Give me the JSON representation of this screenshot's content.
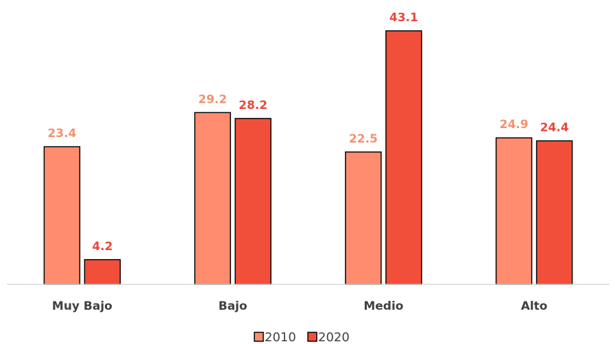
{
  "chart_data": {
    "type": "bar",
    "categories": [
      "Muy Bajo",
      "Bajo",
      "Medio",
      "Alto"
    ],
    "series": [
      {
        "name": "2010",
        "values": [
          23.4,
          29.2,
          22.5,
          24.9
        ],
        "color": "#FF8C6E"
      },
      {
        "name": "2020",
        "values": [
          4.2,
          28.2,
          43.1,
          24.4
        ],
        "color": "#F24F3B"
      }
    ],
    "value_label_colors": [
      "#F4916F",
      "#E8473A"
    ],
    "title": "",
    "xlabel": "",
    "ylabel": "",
    "ylim": [
      0,
      43.1
    ],
    "grid": false,
    "legend_position": "bottom"
  }
}
